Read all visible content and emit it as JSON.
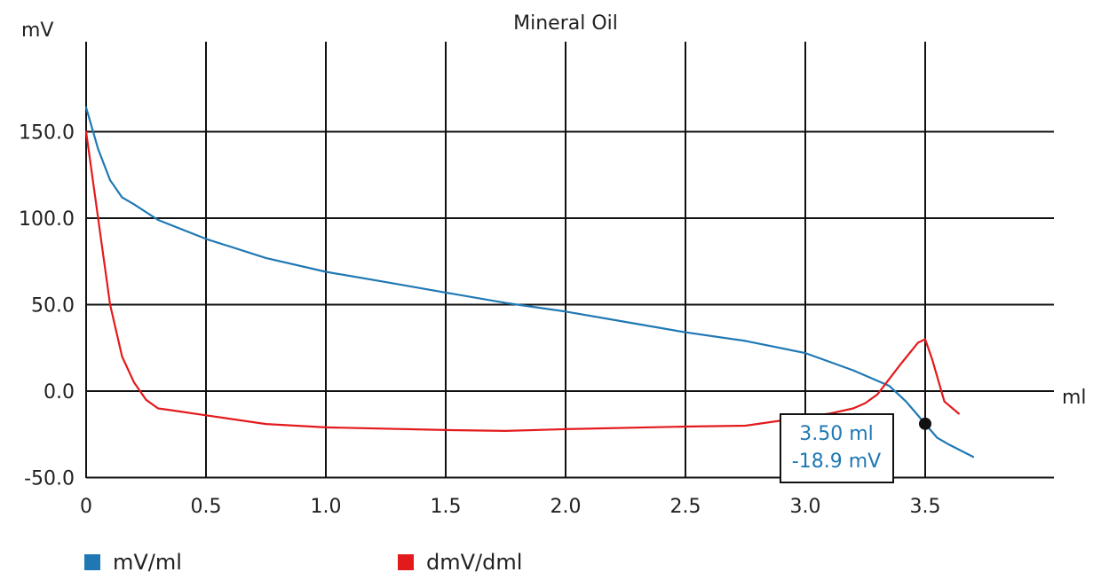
{
  "chart_data": {
    "type": "line",
    "title": "Mineral Oil",
    "ylabel": "mV",
    "xlabel": "ml",
    "xlim": [
      0,
      4.0
    ],
    "ylim": [
      -50,
      200
    ],
    "grid": true,
    "x_ticks": [
      "0",
      "0.5",
      "1.0",
      "1.5",
      "2.0",
      "2.5",
      "3.0",
      "3.5"
    ],
    "y_ticks": [
      "-50.0",
      "0.0",
      "50.0",
      "100.0",
      "150.0"
    ],
    "series": [
      {
        "name": "mV/ml",
        "color": "#1f78b4",
        "x": [
          0.0,
          0.05,
          0.1,
          0.15,
          0.2,
          0.3,
          0.5,
          0.75,
          1.0,
          1.25,
          1.5,
          1.75,
          2.0,
          2.25,
          2.5,
          2.75,
          3.0,
          3.2,
          3.35,
          3.42,
          3.5,
          3.55,
          3.6,
          3.7
        ],
        "y": [
          164,
          140,
          122,
          112,
          108,
          99,
          88,
          77,
          69,
          63,
          57,
          51,
          46,
          40,
          34,
          29,
          22,
          12,
          3,
          -6,
          -18.9,
          -27,
          -31,
          -38
        ]
      },
      {
        "name": "dMV/dml",
        "color": "#e31a1c",
        "x": [
          0.0,
          0.05,
          0.1,
          0.15,
          0.2,
          0.25,
          0.3,
          0.35,
          0.5,
          0.75,
          1.0,
          1.5,
          1.75,
          2.0,
          2.5,
          2.75,
          3.0,
          3.1,
          3.2,
          3.25,
          3.3,
          3.4,
          3.47,
          3.5,
          3.53,
          3.58,
          3.64
        ],
        "y": [
          150,
          100,
          50,
          20,
          5,
          -5,
          -10,
          -11,
          -14,
          -19,
          -21,
          -22.5,
          -23,
          -22,
          -20.5,
          -20,
          -15,
          -13,
          -10,
          -7,
          -2,
          16,
          28,
          30,
          18,
          -6,
          -13
        ]
      }
    ],
    "annotation": {
      "x": 3.5,
      "y": -18.9,
      "line1": "3.50 ml",
      "line2": "-18.9 mV"
    }
  },
  "legend": {
    "items": [
      {
        "label": "mV/ml",
        "color": "#1f78b4"
      },
      {
        "label": "dmV/dml",
        "color": "#e31a1c"
      }
    ]
  }
}
